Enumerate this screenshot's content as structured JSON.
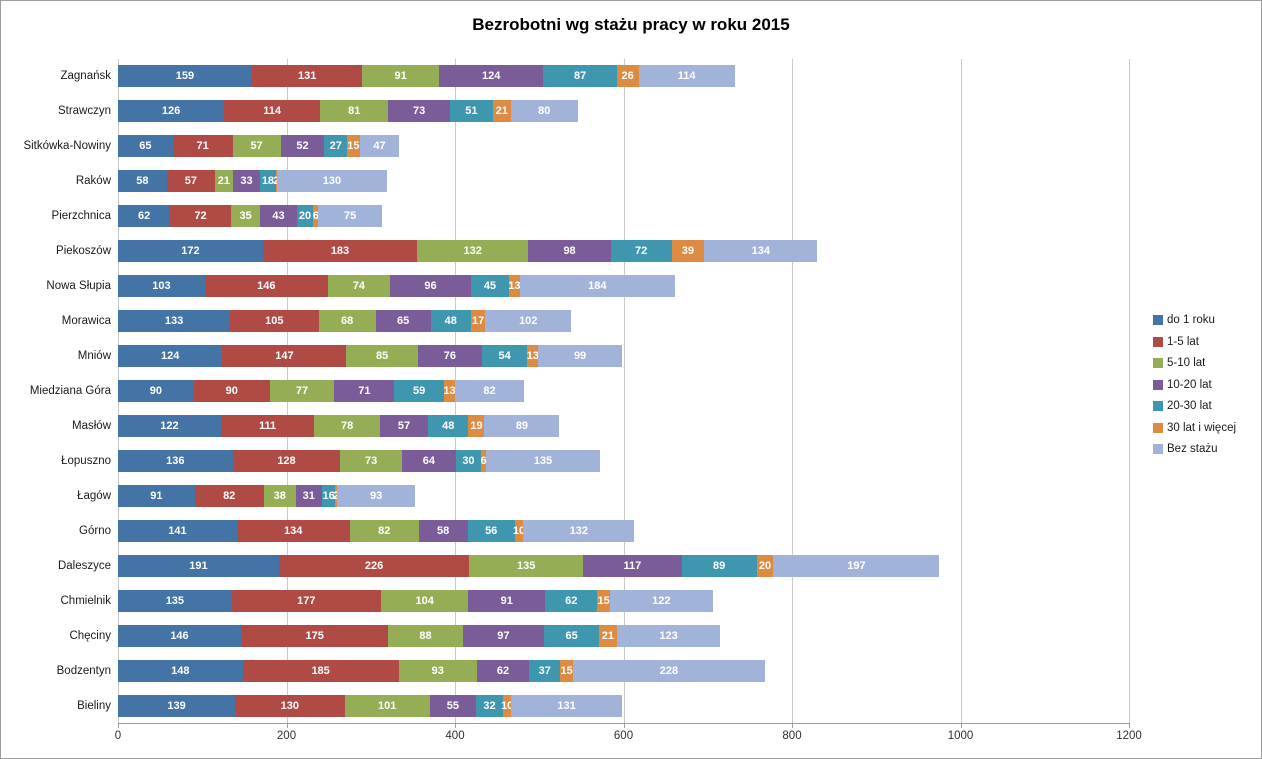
{
  "chart_data": {
    "type": "bar",
    "orientation": "horizontal",
    "stacked": true,
    "title": "Bezrobotni wg stażu pracy w roku 2015",
    "categories": [
      "Zagnańsk",
      "Strawczyn",
      "Sitkówka-Nowiny",
      "Raków",
      "Pierzchnica",
      "Piekoszów",
      "Nowa Słupia",
      "Morawica",
      "Mniów",
      "Miedziana Góra",
      "Masłów",
      "Łopuszno",
      "Łagów",
      "Górno",
      "Daleszyce",
      "Chmielnik",
      "Chęciny",
      "Bodzentyn",
      "Bieliny"
    ],
    "series": [
      {
        "name": "do 1 roku",
        "color": "#4473A5",
        "values": [
          159,
          126,
          65,
          58,
          62,
          172,
          103,
          133,
          124,
          90,
          122,
          136,
          91,
          141,
          191,
          135,
          146,
          148,
          139
        ]
      },
      {
        "name": "1-5 lat",
        "color": "#B04A45",
        "values": [
          131,
          114,
          71,
          57,
          72,
          183,
          146,
          105,
          147,
          90,
          111,
          128,
          82,
          134,
          226,
          177,
          175,
          185,
          130
        ]
      },
      {
        "name": "5-10 lat",
        "color": "#95AD54",
        "values": [
          91,
          81,
          57,
          21,
          35,
          132,
          74,
          68,
          85,
          77,
          78,
          73,
          38,
          82,
          135,
          104,
          88,
          93,
          101
        ]
      },
      {
        "name": "10-20 lat",
        "color": "#7A5C99",
        "values": [
          124,
          73,
          52,
          33,
          43,
          98,
          96,
          65,
          76,
          71,
          57,
          64,
          31,
          58,
          117,
          91,
          97,
          62,
          55
        ]
      },
      {
        "name": "20-30 lat",
        "color": "#3F96AF",
        "values": [
          87,
          51,
          27,
          18,
          20,
          72,
          45,
          48,
          54,
          59,
          48,
          30,
          16,
          56,
          89,
          62,
          65,
          37,
          32
        ]
      },
      {
        "name": "30 lat i więcej",
        "color": "#DD8B42",
        "values": [
          26,
          21,
          15,
          2,
          6,
          39,
          13,
          17,
          13,
          13,
          19,
          6,
          2,
          10,
          20,
          15,
          21,
          15,
          10
        ]
      },
      {
        "name": "Bez stażu",
        "color": "#A2B3DA",
        "values": [
          114,
          80,
          47,
          130,
          75,
          134,
          184,
          102,
          99,
          82,
          89,
          135,
          93,
          132,
          197,
          122,
          123,
          228,
          131
        ]
      }
    ],
    "xlim": [
      0,
      1200
    ],
    "x_ticks": [
      0,
      200,
      400,
      600,
      800,
      1000,
      1200
    ],
    "grid": "vertical-gridlines",
    "legend_position": "right",
    "value_label_style": "white bold, centered in each segment"
  }
}
